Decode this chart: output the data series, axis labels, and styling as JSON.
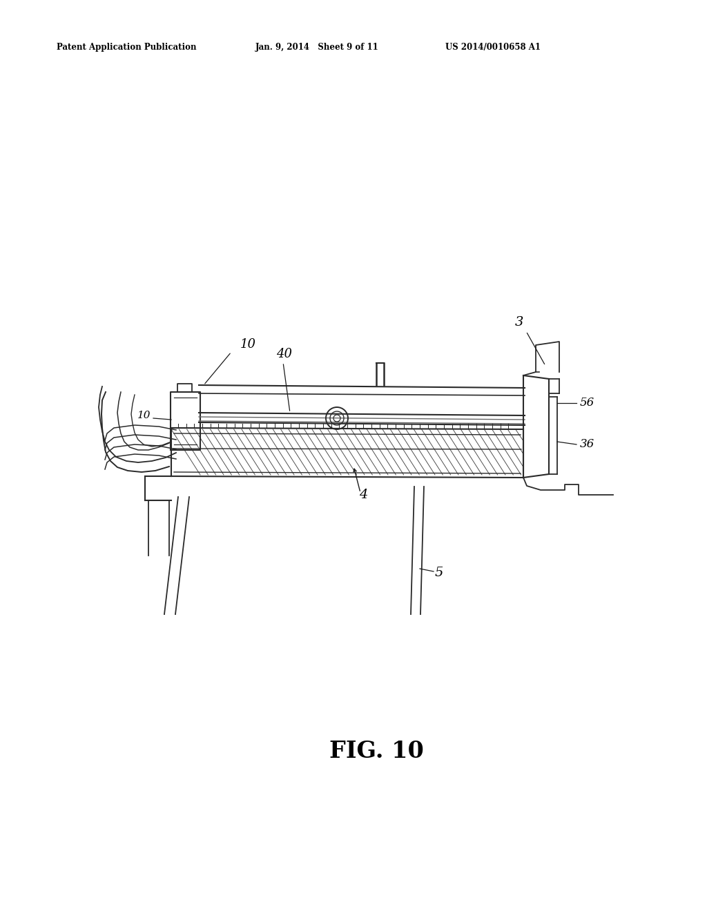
{
  "bg_color": "#ffffff",
  "header_left": "Patent Application Publication",
  "header_mid": "Jan. 9, 2014   Sheet 9 of 11",
  "header_right": "US 2014/0010658 A1",
  "fig_label": "FIG. 10",
  "line_color": "#2a2a2a",
  "light_line": "#666666"
}
